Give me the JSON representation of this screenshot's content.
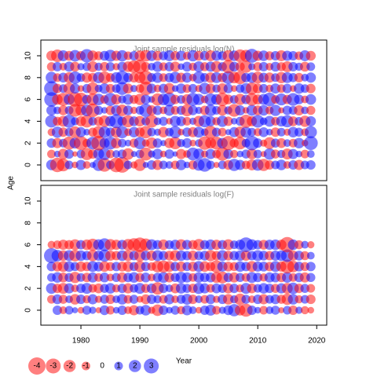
{
  "chart_data": [
    {
      "type": "scatter",
      "title": "Joint sample residuals log(N)",
      "x": [
        1975,
        1976,
        1977,
        1978,
        1979,
        1980,
        1981,
        1982,
        1983,
        1984,
        1985,
        1986,
        1987,
        1988,
        1989,
        1990,
        1991,
        1992,
        1993,
        1994,
        1995,
        1996,
        1997,
        1998,
        1999,
        2000,
        2001,
        2002,
        2003,
        2004,
        2005,
        2006,
        2007,
        2008,
        2009,
        2010,
        2011,
        2012,
        2013,
        2014,
        2015,
        2016,
        2017,
        2018,
        2019
      ],
      "y": [
        0,
        1,
        2,
        3,
        4,
        5,
        6,
        7,
        8,
        9,
        10
      ],
      "values": [
        [
          1.5,
          -2.8,
          -2.2,
          1,
          -0.6,
          1.4,
          -0.8,
          0.5,
          2,
          -2.5,
          1,
          -2.9,
          -3.2,
          1,
          -0.7,
          -2,
          0.5,
          1.2,
          -1.4,
          1,
          0.8,
          -1,
          1.5,
          0.6,
          -1.1,
          1.8,
          2.5,
          1,
          -0.5,
          1,
          -1.3,
          2,
          1.4,
          -1,
          -1.6,
          1.8,
          -2,
          -1.2,
          1,
          1.5,
          -0.8,
          1.2,
          -1.4,
          1,
          1.2
        ],
        [
          -1,
          0.6,
          -1.5,
          1.2,
          -0.4,
          1,
          -2,
          -1.2,
          1.6,
          2,
          -1,
          0.8,
          1.1,
          -1.8,
          0.5,
          1,
          -2.3,
          0.7,
          1.5,
          -0.6,
          1.2,
          0.4,
          -1.4,
          -0.8,
          2.2,
          1.6,
          -0.7,
          1.4,
          -1,
          -2.4,
          1.3,
          -0.9,
          0.6,
          1.1,
          -1.5,
          1,
          -0.5,
          1.8,
          -1.1,
          0.9,
          -1.6,
          1.4,
          0.6,
          -1,
          0.8
        ],
        [
          1.2,
          -1.4,
          1,
          -2.3,
          1.6,
          -2.6,
          -1,
          2.1,
          -2.9,
          1.4,
          2.2,
          -1.5,
          1,
          0.6,
          -1.1,
          2,
          -0.8,
          -1.7,
          1.2,
          0.5,
          -1.4,
          -2,
          0.9,
          1.3,
          -0.6,
          0.8,
          -2.4,
          -1.6,
          -2.2,
          1.5,
          -2.7,
          -1.1,
          -2.1,
          1,
          2.8,
          1.2,
          -0.7,
          -1.9,
          1.1,
          -1.3,
          0.8,
          -1,
          1.5,
          -0.6,
          2.6
        ],
        [
          -0.8,
          1.7,
          -1.2,
          1,
          -1.8,
          1.4,
          0.6,
          -1.1,
          -2,
          1.8,
          1.2,
          -1.6,
          2,
          -0.8,
          1.5,
          -1.3,
          -2.1,
          1,
          0.7,
          -1.5,
          1,
          2,
          -0.6,
          1.2,
          -1.4,
          1.6,
          0.8,
          -2.2,
          1.1,
          -1,
          0.5,
          1.4,
          -1.7,
          1.6,
          1,
          -0.9,
          1.3,
          0.6,
          -1.2,
          1,
          -0.7,
          1.5,
          1.1,
          -0.8,
          2
        ],
        [
          2.1,
          -1.1,
          -1.6,
          2.3,
          0.9,
          -1.4,
          -2.1,
          1,
          -1.2,
          -1.8,
          1.5,
          2.6,
          1.2,
          -2,
          1.3,
          -1.5,
          1,
          -2.2,
          0.8,
          1.1,
          -0.6,
          1.6,
          1.3,
          -1,
          0.7,
          -1.6,
          2,
          1.4,
          -0.9,
          1.7,
          -1.2,
          0.6,
          1.1,
          -2.3,
          -1.4,
          2.2,
          0.8,
          1.6,
          -1,
          1.5,
          2,
          -1.3,
          1,
          -1.7,
          1.4
        ],
        [
          1.4,
          0.8,
          -1.3,
          1,
          -2.2,
          -1.6,
          1.8,
          -2.5,
          1.1,
          0.6,
          -1.2,
          1.5,
          -1.8,
          1.3,
          -0.7,
          1,
          2.4,
          -1.4,
          1.2,
          -0.8,
          1.6,
          -1,
          1.1,
          -1.9,
          1.3,
          0.7,
          -1.2,
          1.8,
          1,
          -1.5,
          0.9,
          -2.2,
          1.4,
          -0.6,
          1.6,
          -1.3,
          1.5,
          -0.9,
          1.7,
          -0.5,
          1.2,
          1,
          -1.4,
          0.8,
          -1.1
        ],
        [
          2.8,
          -1.5,
          -2.3,
          1.6,
          -2.8,
          -2.5,
          1.2,
          -1.9,
          1.8,
          -1,
          2.3,
          -1.4,
          0.9,
          1.5,
          -1.1,
          -1.7,
          1.3,
          0.6,
          -2,
          1.8,
          2.6,
          -1.2,
          1,
          -1.5,
          2.3,
          1.7,
          -0.8,
          2,
          1.5,
          -2.4,
          -1.3,
          1,
          -1.7,
          1.2,
          -2.1,
          -1.4,
          1.6,
          2.5,
          -1,
          1.9,
          -1.2,
          2.2,
          1.3,
          -0.8,
          1.5
        ],
        [
          2.9,
          -1.2,
          1,
          -1.8,
          1.4,
          -0.6,
          1.1,
          -2,
          0.8,
          1.5,
          -1.1,
          1,
          2.2,
          -1.4,
          0.7,
          -1,
          -2.5,
          1.3,
          -0.8,
          1.2,
          -1.6,
          0.6,
          1.4,
          -1,
          1.1,
          -0.7,
          1.8,
          -1.3,
          0.9,
          -1.5,
          1.2,
          -0.6,
          1,
          1.6,
          -2,
          -1.3,
          1.1,
          -0.8,
          1.4,
          -1,
          1.2,
          -0.6,
          1.5,
          1,
          -1.2
        ],
        [
          1.8,
          -1,
          1.3,
          -1.6,
          2.1,
          1,
          -1.4,
          -1.2,
          1.7,
          -2,
          -1.1,
          1.6,
          2.4,
          1.2,
          -1.3,
          -1.7,
          -2.6,
          1.1,
          1.5,
          -1,
          1.2,
          1.8,
          -1.3,
          1.4,
          -0.8,
          2,
          1.1,
          -1.5,
          1.6,
          -1.2,
          2.2,
          -1.8,
          -2.3,
          1.2,
          1.5,
          -1.9,
          1.3,
          -1.4,
          1,
          -1.7,
          1.6,
          1.1,
          -1.2,
          0.8,
          1.4
        ],
        [
          -1.1,
          1.2,
          -0.8,
          1.4,
          -1.3,
          0.7,
          1,
          -1.6,
          0.9,
          -1.2,
          1.1,
          -0.7,
          1.3,
          -1.5,
          -2.2,
          -2.6,
          -1.2,
          0.8,
          1.5,
          -1,
          1.2,
          -1.4,
          0.6,
          1.3,
          -0.9,
          1.6,
          -1.1,
          1.4,
          -1.7,
          1.1,
          -2.4,
          1.3,
          -1.2,
          -2,
          0.7,
          -1.1,
          1.2,
          -0.8,
          1.3,
          -1.1,
          -1.6,
          1.2,
          0.9,
          -1.3,
          1
        ],
        [
          -1.4,
          -2.1,
          1.6,
          -1.3,
          1.8,
          -1.2,
          2.4,
          -1.5,
          -1.1,
          1.3,
          1.9,
          -1.4,
          1.7,
          -1,
          1.2,
          -1.5,
          -1.8,
          1.5,
          -1.3,
          1.1,
          1.6,
          -1.2,
          1.4,
          -0.9,
          1.7,
          -1.3,
          1.2,
          -1.6,
          1.4,
          1.1,
          -1.7,
          1.5,
          -2.2,
          -1.9,
          2.6,
          -1.4,
          1.5,
          -1.1,
          1.2,
          -1.6,
          1.4,
          1.2,
          -1,
          1.6,
          -1.3
        ]
      ],
      "ylim": [
        -1.44,
        11.44
      ],
      "yticks": [
        0,
        2,
        4,
        6,
        8,
        10
      ],
      "xlim": [
        1973.2,
        2021.7
      ],
      "colors": {
        "positive": "#0000ff",
        "negative": "#ff0000"
      }
    },
    {
      "type": "scatter",
      "title": "Joint sample residuals log(F)",
      "x": [
        1975,
        1976,
        1977,
        1978,
        1979,
        1980,
        1981,
        1982,
        1983,
        1984,
        1985,
        1986,
        1987,
        1988,
        1989,
        1990,
        1991,
        1992,
        1993,
        1994,
        1995,
        1996,
        1997,
        1998,
        1999,
        2000,
        2001,
        2002,
        2003,
        2004,
        2005,
        2006,
        2007,
        2008,
        2009,
        2010,
        2011,
        2012,
        2013,
        2014,
        2015,
        2016,
        2017,
        2018,
        2019
      ],
      "y": [
        0,
        1,
        2,
        3,
        4,
        5,
        6
      ],
      "values": [
        [
          0,
          1.2,
          -0.8,
          1,
          0.5,
          -0.6,
          1.1,
          0.7,
          -0.5,
          1.3,
          -1,
          0.6,
          1.2,
          -0.8,
          -1.4,
          1,
          1.5,
          -0.7,
          -1.8,
          1.2,
          0.6,
          1.1,
          -0.9,
          1.4,
          0.8,
          -0.6,
          1.2,
          1.6,
          -1,
          0.7,
          1.3,
          2,
          -1.5,
          -2.3,
          1.2,
          0.6,
          -1,
          0.8,
          1.1,
          -0.5,
          1,
          -1.2,
          0.7,
          -0.9,
          -0.6
        ],
        [
          -1,
          1.3,
          -1.1,
          0.8,
          -1.5,
          1.2,
          -0.9,
          1.4,
          -0.7,
          1.1,
          -1.2,
          0.8,
          1.5,
          -1,
          1.1,
          -0.6,
          -1.3,
          1.2,
          0.9,
          -1,
          1.4,
          -0.8,
          1.1,
          1.6,
          -1.2,
          0.8,
          -1,
          1.3,
          -0.7,
          1.2,
          -1.5,
          0.9,
          -1.8,
          1.1,
          -0.8,
          1.2,
          -1.4,
          1,
          1.3,
          -1.1,
          -1.7,
          1.5,
          -0.9,
          1,
          -1.2
        ],
        [
          1.6,
          -1.2,
          -1.6,
          1.4,
          -0.8,
          1.2,
          1.6,
          -1,
          -1.3,
          1.1,
          1.5,
          -0.9,
          1.2,
          -1.4,
          1,
          1.6,
          -1.1,
          1.3,
          -2.1,
          1.2,
          0.8,
          -1.3,
          1.5,
          1.1,
          -1.2,
          1.7,
          1.4,
          -1,
          1.3,
          1.1,
          -1.4,
          1.2,
          -0.9,
          1.6,
          -1.3,
          1,
          1.5,
          1.2,
          -1.1,
          1.4,
          -1.6,
          1.8,
          -1.2,
          1.1,
          -1
        ],
        [
          1,
          1.5,
          -1.3,
          1.1,
          -1.7,
          1,
          -1.2,
          1.4,
          -1,
          1.3,
          -0.8,
          1.1,
          -1.4,
          1.2,
          1.5,
          -1.1,
          1.3,
          -0.8,
          1.2,
          1.6,
          -1.3,
          1.1,
          1.7,
          1.4,
          -1,
          1.5,
          1.2,
          1.3,
          -1.6,
          -1.9,
          1.2,
          -1.4,
          1.1,
          -1,
          1.6,
          1.2,
          -0.9,
          1.4,
          1.3,
          -1.2,
          1.5,
          -1,
          1.2,
          -1.4,
          1.1
        ],
        [
          1.2,
          -1.3,
          -1.6,
          1.5,
          1.1,
          -1.4,
          -1.2,
          1.6,
          1.3,
          -1.5,
          -1.1,
          1.2,
          -1.3,
          -1.5,
          1.1,
          -1.7,
          1.2,
          -1,
          -1.8,
          -2,
          -1.6,
          1.2,
          -1.4,
          1.1,
          -1.3,
          1.6,
          -1.5,
          -1.2,
          -2.1,
          1.4,
          -1.3,
          -1.1,
          1.5,
          1.2,
          -1.6,
          1.4,
          1.3,
          -1.2,
          1.6,
          -1.4,
          -2.6,
          -1.8,
          1.3,
          -1.1,
          1.2
        ],
        [
          3,
          1.8,
          -1.5,
          1.6,
          -1.8,
          1.5,
          1.2,
          -1.7,
          1.4,
          2,
          -1.4,
          -1.2,
          1.5,
          -1.6,
          1.2,
          -1.8,
          1.3,
          -1.4,
          1.6,
          1.2,
          -1.3,
          -1.6,
          1.5,
          1.2,
          -1.4,
          1.1,
          1.3,
          -1.7,
          -1.2,
          1.6,
          -1.3,
          1.2,
          1.5,
          -1.4,
          1.2,
          1.6,
          1.3,
          -1.2,
          1.4,
          1.5,
          2.1,
          -1.4,
          1.3,
          -1.1,
          0.8
        ],
        [
          -0.8,
          -1,
          -1.4,
          -1.2,
          -1.6,
          1.2,
          -1.5,
          -2,
          1.6,
          2.2,
          -1.7,
          -1.4,
          1.3,
          -1.8,
          -2.3,
          -2.8,
          -2.1,
          1.6,
          1.2,
          -1.5,
          1.1,
          1.4,
          -1.6,
          1.3,
          -1.2,
          -1.8,
          1.2,
          1.5,
          -1.4,
          1.2,
          -1.6,
          1,
          1.4,
          2.9,
          1.6,
          1.2,
          -1.3,
          1.4,
          1.5,
          -1.4,
          -3.2,
          1.5,
          -1.1,
          0.8,
          -0.7
        ]
      ],
      "ylim": [
        -1.37,
        11.44
      ],
      "yticks": [
        0,
        2,
        4,
        6,
        8,
        10
      ],
      "xlim": [
        1973.2,
        2021.7
      ],
      "xticks": [
        1980,
        1990,
        2000,
        2010,
        2020
      ],
      "xlabel": "Year",
      "ylabel": "Age",
      "colors": {
        "positive": "#0000ff",
        "negative": "#ff0000"
      },
      "legend": [
        -4,
        -3,
        -2,
        -1,
        0,
        1,
        2,
        3
      ]
    }
  ]
}
